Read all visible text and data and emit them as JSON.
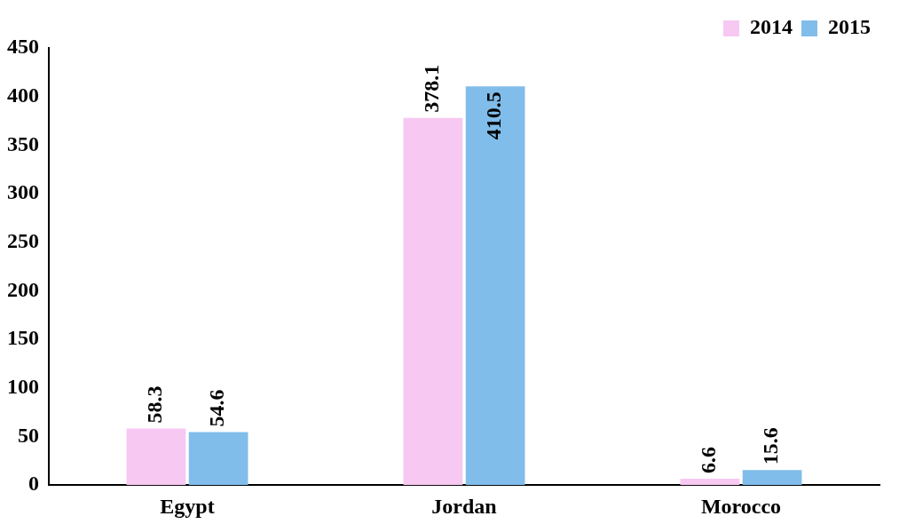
{
  "chart_data": {
    "type": "bar",
    "categories": [
      "Egypt",
      "Jordan",
      "Morocco"
    ],
    "series": [
      {
        "name": "2014",
        "color": "#f7c8f2",
        "values": [
          58.3,
          378.1,
          6.6
        ]
      },
      {
        "name": "2015",
        "color": "#80bdea",
        "values": [
          54.6,
          410.5,
          15.6
        ]
      }
    ],
    "ylim": [
      0,
      450
    ],
    "yticks": [
      0,
      50,
      100,
      150,
      200,
      250,
      300,
      350,
      400,
      450
    ],
    "grid": false,
    "legend": "top right",
    "data_labels": true
  }
}
